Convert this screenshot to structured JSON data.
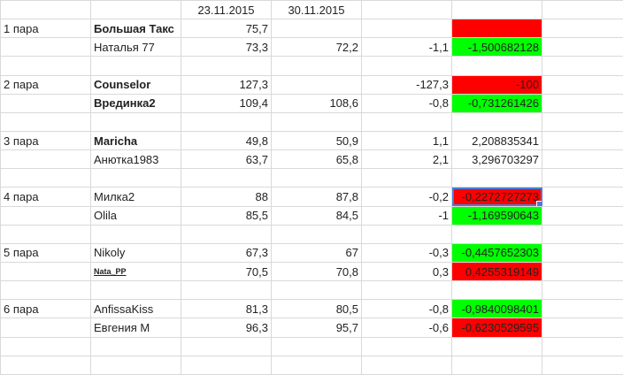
{
  "headers": [
    "",
    "",
    "23.11.2015",
    "30.11.2015",
    "",
    ""
  ],
  "colors": {
    "green": "#00ff00",
    "red": "#ff0000",
    "grid": "#d9d9d9",
    "selection": "#4a7bd8"
  },
  "rows": [
    {
      "cells": [
        "1 пара",
        "Большая Такс",
        "75,7",
        "",
        "",
        ""
      ],
      "styles": [
        "",
        "bold",
        "num",
        "num",
        "num",
        "red"
      ]
    },
    {
      "cells": [
        "",
        "Наталья 77",
        "73,3",
        "72,2",
        "-1,1",
        "-1,500682128"
      ],
      "styles": [
        "",
        "",
        "num",
        "num",
        "num",
        "green num"
      ]
    },
    {
      "cells": [
        "",
        "",
        "",
        "",
        "",
        ""
      ],
      "styles": [
        "",
        "",
        "",
        "",
        "",
        ""
      ]
    },
    {
      "cells": [
        "2 пара",
        "Counselor",
        "127,3",
        "",
        "-127,3",
        "-100"
      ],
      "styles": [
        "",
        "bold",
        "num",
        "num",
        "num",
        "red num"
      ]
    },
    {
      "cells": [
        "",
        "Врединка2",
        "109,4",
        "108,6",
        "-0,8",
        "-0,731261426"
      ],
      "styles": [
        "",
        "bold",
        "num",
        "num",
        "num",
        "green num"
      ]
    },
    {
      "cells": [
        "",
        "",
        "",
        "",
        "",
        ""
      ],
      "styles": [
        "",
        "",
        "",
        "",
        "",
        ""
      ]
    },
    {
      "cells": [
        "3 пара",
        "Maricha",
        "49,8",
        "50,9",
        "1,1",
        "2,208835341"
      ],
      "styles": [
        "",
        "bold",
        "num",
        "num",
        "num",
        "num"
      ]
    },
    {
      "cells": [
        "",
        "Анютка1983",
        "63,7",
        "65,8",
        "2,1",
        "3,296703297"
      ],
      "styles": [
        "",
        "",
        "num",
        "num",
        "num",
        "num"
      ]
    },
    {
      "cells": [
        "",
        "",
        "",
        "",
        "",
        ""
      ],
      "styles": [
        "",
        "",
        "",
        "",
        "",
        ""
      ]
    },
    {
      "cells": [
        "4 пара",
        "Милка2",
        "88",
        "87,8",
        "-0,2",
        "-0,2272727273"
      ],
      "styles": [
        "",
        "",
        "num",
        "num",
        "num",
        "red num sel"
      ]
    },
    {
      "cells": [
        "",
        "Olila",
        "85,5",
        "84,5",
        "-1",
        "-1,169590643"
      ],
      "styles": [
        "",
        "",
        "num",
        "num",
        "num",
        "green num"
      ]
    },
    {
      "cells": [
        "",
        "",
        "",
        "",
        "",
        ""
      ],
      "styles": [
        "",
        "",
        "",
        "",
        "",
        ""
      ]
    },
    {
      "cells": [
        "5 пара",
        "Nikoly",
        "67,3",
        "67",
        "-0,3",
        "-0,4457652303"
      ],
      "styles": [
        "",
        "",
        "num",
        "num",
        "num",
        "green num"
      ]
    },
    {
      "cells": [
        "",
        "Nata_PP",
        "70,5",
        "70,8",
        "0,3",
        "0,4255319149"
      ],
      "styles": [
        "",
        "small-bold",
        "num",
        "num",
        "num",
        "red num"
      ]
    },
    {
      "cells": [
        "",
        "",
        "",
        "",
        "",
        ""
      ],
      "styles": [
        "",
        "",
        "",
        "",
        "",
        ""
      ]
    },
    {
      "cells": [
        "6 пара",
        "AnfissaKiss",
        "81,3",
        "80,5",
        "-0,8",
        "-0,9840098401"
      ],
      "styles": [
        "",
        "",
        "num",
        "num",
        "num",
        "green num"
      ]
    },
    {
      "cells": [
        "",
        "Евгения М",
        "96,3",
        "95,7",
        "-0,6",
        "-0,6230529595"
      ],
      "styles": [
        "",
        "",
        "num",
        "num",
        "num",
        "red num"
      ]
    },
    {
      "cells": [
        "",
        "",
        "",
        "",
        "",
        ""
      ],
      "styles": [
        "",
        "",
        "",
        "",
        "",
        ""
      ]
    },
    {
      "cells": [
        "",
        "",
        "",
        "",
        "",
        ""
      ],
      "styles": [
        "",
        "",
        "",
        "",
        "",
        ""
      ]
    }
  ]
}
